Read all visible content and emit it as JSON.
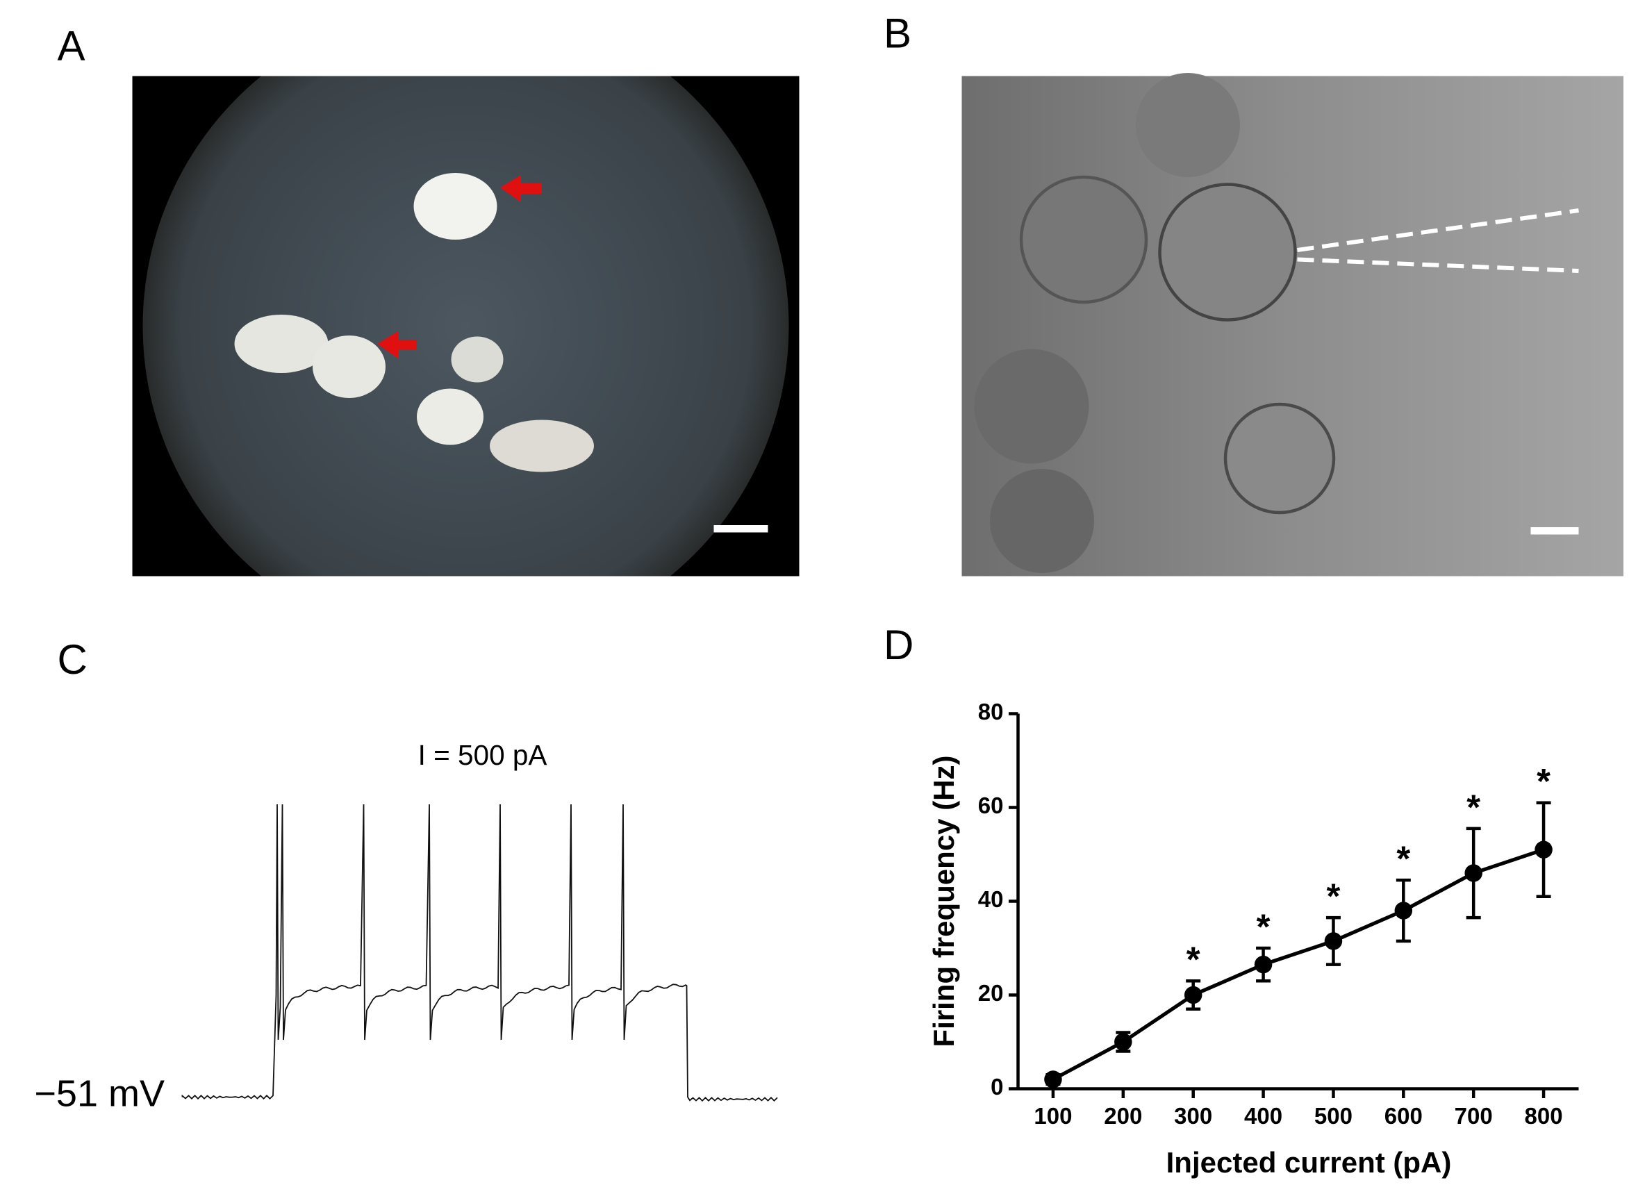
{
  "panels": [
    {
      "label": "A"
    },
    {
      "label": "B"
    },
    {
      "label": "C",
      "annotation": "I = 500 pA",
      "baseline_label": "−51 mV"
    },
    {
      "label": "D"
    }
  ],
  "chart_data": {
    "type": "line",
    "x_label": "Injected current (pA)",
    "y_label": "Firing frequency (Hz)",
    "x": [
      100,
      200,
      300,
      400,
      500,
      600,
      700,
      800
    ],
    "series": [
      {
        "color": "#000000",
        "values": [
          2,
          10,
          20,
          26.5,
          31.5,
          38,
          46,
          51
        ],
        "errors": [
          1,
          2,
          3,
          3.5,
          5,
          6.5,
          9.5,
          10
        ],
        "markers": [
          null,
          null,
          "*",
          "*",
          "*",
          "*",
          "*",
          "*"
        ]
      }
    ],
    "xlim": [
      50,
      850
    ],
    "xticks": [
      100,
      200,
      300,
      400,
      500,
      600,
      700,
      800
    ],
    "ylim": [
      0,
      80
    ],
    "yticks": [
      0,
      20,
      40,
      60,
      80
    ]
  }
}
